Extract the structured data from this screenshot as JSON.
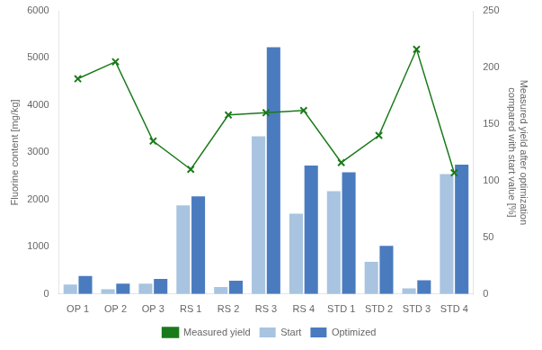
{
  "chart_data": {
    "type": "bar",
    "categories": [
      "OP 1",
      "OP 2",
      "OP 3",
      "RS 1",
      "RS 2",
      "RS 3",
      "RS 4",
      "STD 1",
      "STD 2",
      "STD 3",
      "STD 4"
    ],
    "series": [
      {
        "name": "Start",
        "color": "#a8c4e0",
        "values": [
          200,
          100,
          220,
          1880,
          150,
          3340,
          1700,
          2180,
          680,
          120,
          2540
        ]
      },
      {
        "name": "Optimized",
        "color": "#4a7bbf",
        "values": [
          380,
          220,
          320,
          2070,
          280,
          5230,
          2720,
          2580,
          1020,
          290,
          2740
        ]
      },
      {
        "name": "Measured yield",
        "type": "line",
        "axis": "y2",
        "color": "#1a7a1a",
        "marker": "x",
        "values": [
          190,
          205,
          135,
          110,
          158,
          160,
          162,
          116,
          140,
          216,
          107
        ]
      }
    ],
    "ylabel": "Fluorine content [mg/kg]",
    "y2label": "Measured yield after optimization\ncompared with start value [%]",
    "ylim": [
      0,
      6000
    ],
    "yticks": [
      0,
      1000,
      2000,
      3000,
      4000,
      5000,
      6000
    ],
    "y2lim": [
      0,
      250
    ],
    "y2ticks": [
      0,
      50,
      100,
      150,
      200,
      250
    ],
    "grid": false,
    "legend": "bottom"
  }
}
